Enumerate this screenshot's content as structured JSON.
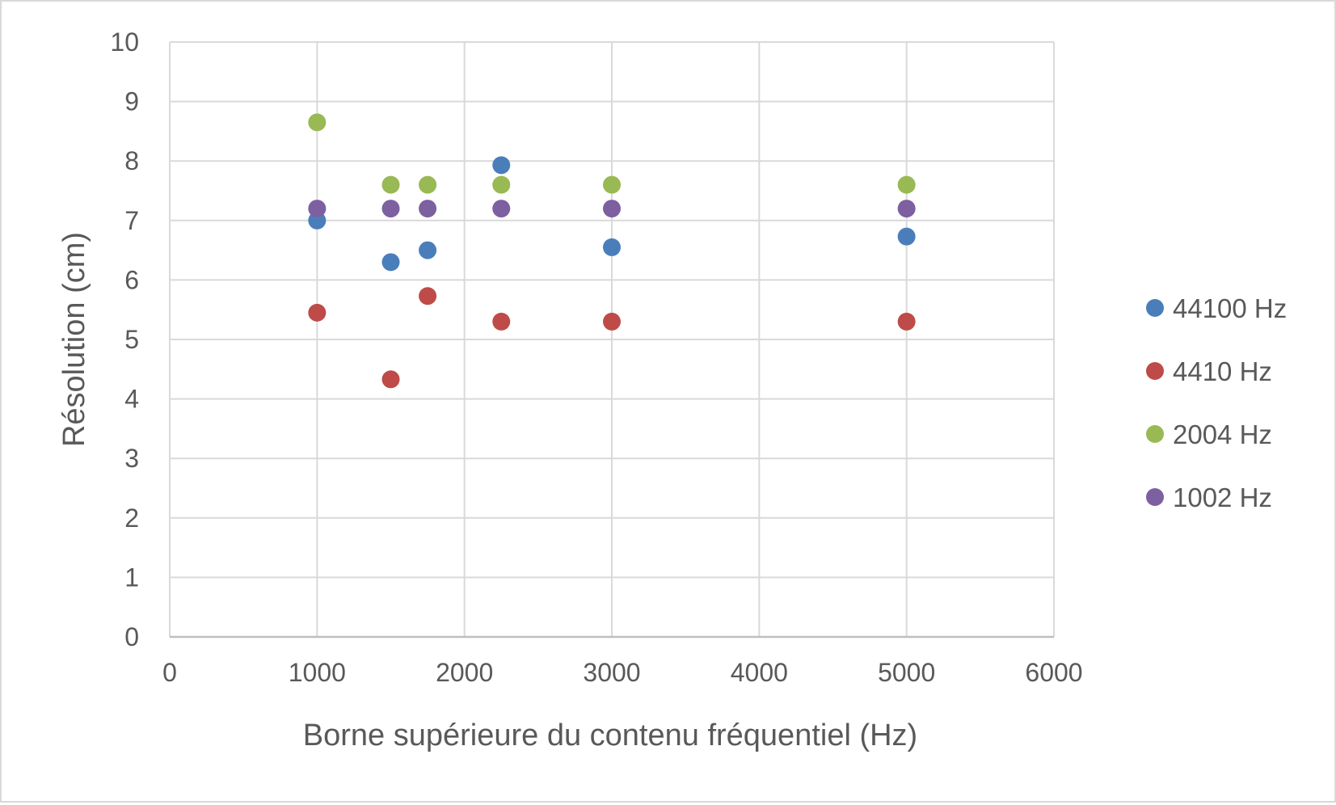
{
  "chart_data": {
    "type": "scatter",
    "title": "",
    "xlabel": "Borne supérieure du contenu fréquentiel (Hz)",
    "ylabel": "Résolution (cm)",
    "xlim": [
      0,
      6000
    ],
    "ylim": [
      0,
      10
    ],
    "x_ticks": [
      "0",
      "1000",
      "2000",
      "3000",
      "4000",
      "5000",
      "6000"
    ],
    "y_ticks": [
      "0",
      "1",
      "2",
      "3",
      "4",
      "5",
      "6",
      "7",
      "8",
      "9",
      "10"
    ],
    "grid": true,
    "legend_position": "right",
    "series": [
      {
        "name": "44100 Hz",
        "color": "#4a7ebb",
        "points": [
          {
            "x": 1000,
            "y": 7.0
          },
          {
            "x": 1500,
            "y": 6.3
          },
          {
            "x": 1750,
            "y": 6.5
          },
          {
            "x": 2250,
            "y": 7.93
          },
          {
            "x": 3000,
            "y": 6.55
          },
          {
            "x": 5000,
            "y": 6.73
          }
        ]
      },
      {
        "name": "4410 Hz",
        "color": "#be4b48",
        "points": [
          {
            "x": 1000,
            "y": 5.45
          },
          {
            "x": 1500,
            "y": 4.33
          },
          {
            "x": 1750,
            "y": 5.73
          },
          {
            "x": 2250,
            "y": 5.3
          },
          {
            "x": 3000,
            "y": 5.3
          },
          {
            "x": 5000,
            "y": 5.3
          }
        ]
      },
      {
        "name": "2004 Hz",
        "color": "#98b954",
        "points": [
          {
            "x": 1000,
            "y": 8.65
          },
          {
            "x": 1500,
            "y": 7.6
          },
          {
            "x": 1750,
            "y": 7.6
          },
          {
            "x": 2250,
            "y": 7.6
          },
          {
            "x": 3000,
            "y": 7.6
          },
          {
            "x": 5000,
            "y": 7.6
          }
        ]
      },
      {
        "name": "1002 Hz",
        "color": "#7d60a0",
        "points": [
          {
            "x": 1000,
            "y": 7.2
          },
          {
            "x": 1500,
            "y": 7.2
          },
          {
            "x": 1750,
            "y": 7.2
          },
          {
            "x": 2250,
            "y": 7.2
          },
          {
            "x": 3000,
            "y": 7.2
          },
          {
            "x": 5000,
            "y": 7.2
          }
        ]
      }
    ]
  }
}
